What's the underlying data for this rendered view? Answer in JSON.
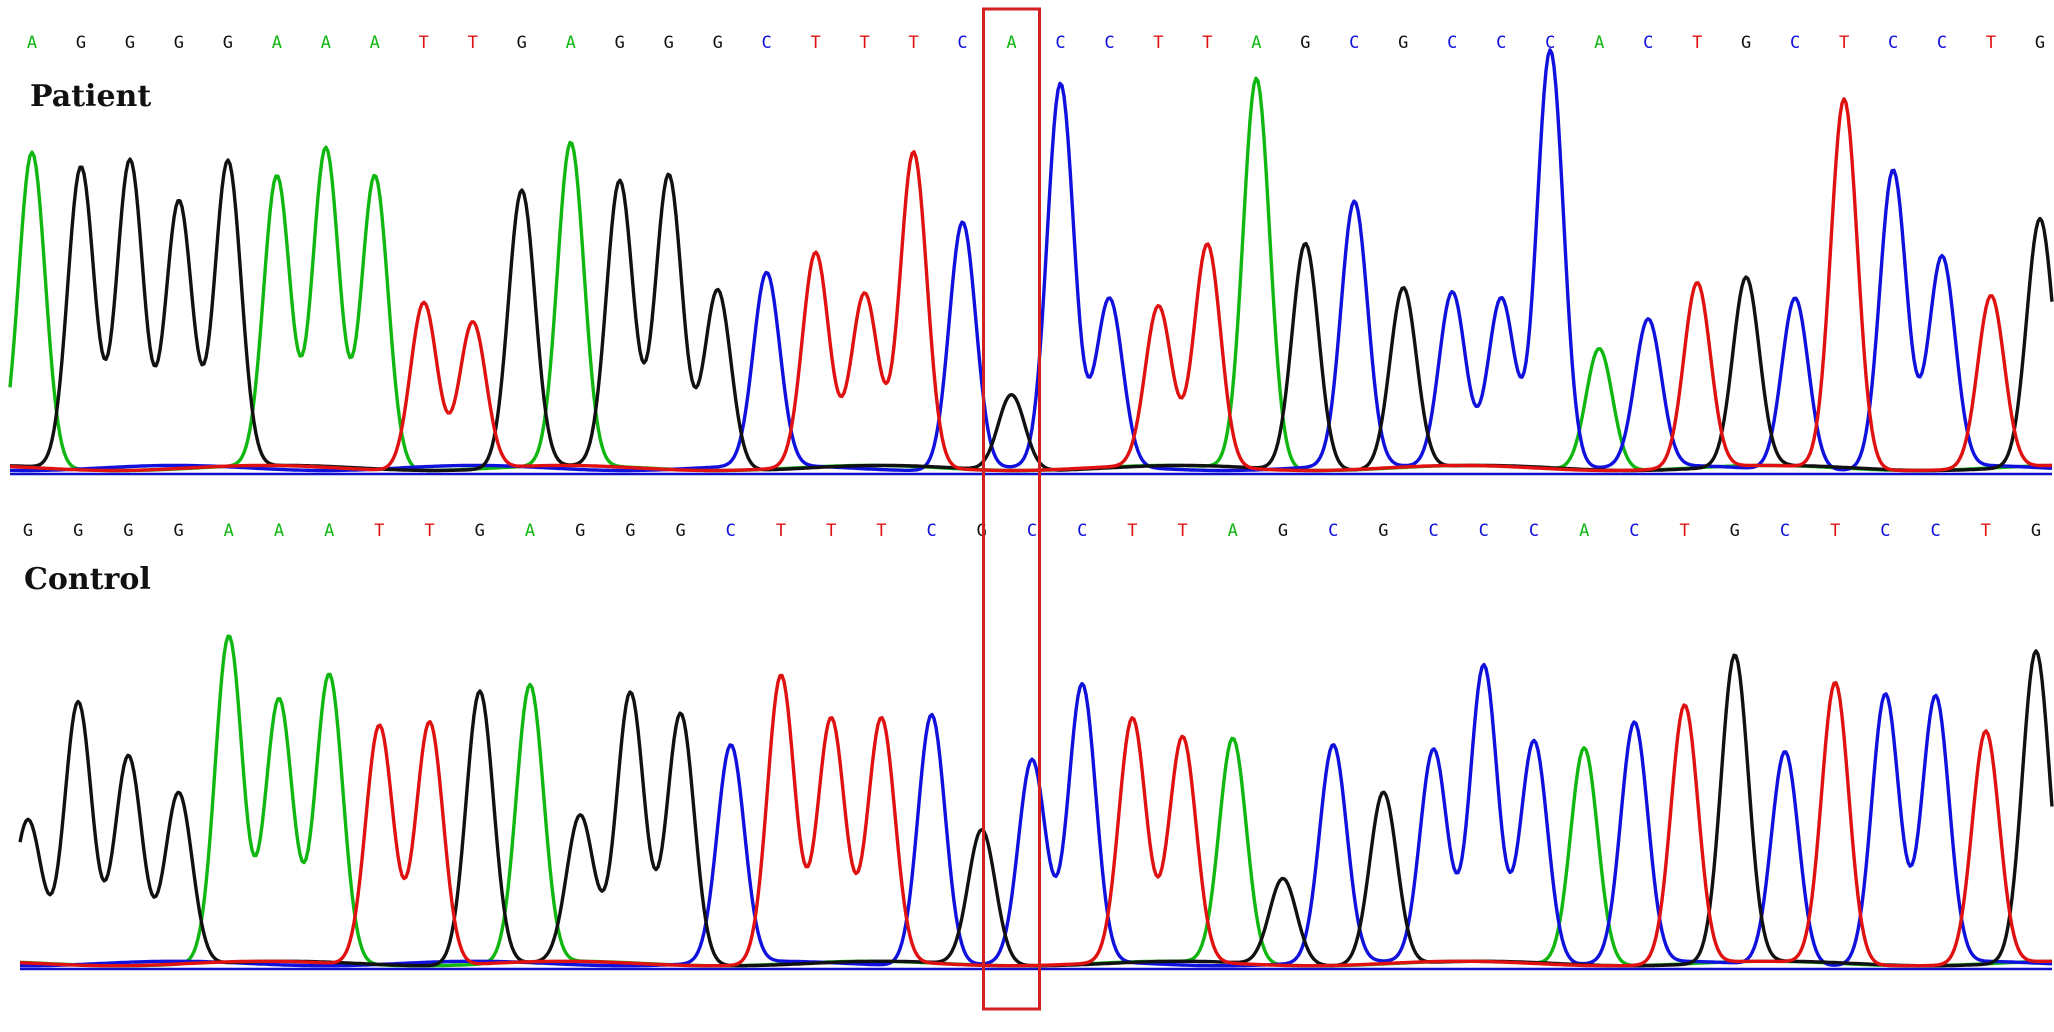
{
  "colors": {
    "A": "#11b711",
    "C": "#1111dd",
    "G": "#111111",
    "T": "#e01111",
    "highlight": "#d42020",
    "baseline": "#1111cc"
  },
  "chart_data": [
    {
      "type": "line",
      "title": "Patient",
      "sequence": [
        "A",
        "G",
        "G",
        "G",
        "G",
        "A",
        "A",
        "A",
        "T",
        "T",
        "G",
        "A",
        "G",
        "G",
        "G",
        "C",
        "T",
        "T",
        "T",
        "C",
        "A",
        "C",
        "C",
        "T",
        "T",
        "A",
        "G",
        "C",
        "G",
        "C",
        "C",
        "C",
        "A",
        "C",
        "T",
        "G",
        "C",
        "T",
        "C",
        "C",
        "T",
        "G"
      ],
      "highlight_index": 20,
      "peaks": [
        {
          "base": "A",
          "h": 0.75
        },
        {
          "base": "G",
          "h": 0.72
        },
        {
          "base": "G",
          "h": 0.74
        },
        {
          "base": "G",
          "h": 0.64
        },
        {
          "base": "G",
          "h": 0.73
        },
        {
          "base": "A",
          "h": 0.69
        },
        {
          "base": "A",
          "h": 0.76
        },
        {
          "base": "A",
          "h": 0.7
        },
        {
          "base": "T",
          "h": 0.4
        },
        {
          "base": "T",
          "h": 0.35
        },
        {
          "base": "G",
          "h": 0.66
        },
        {
          "base": "A",
          "h": 0.77
        },
        {
          "base": "G",
          "h": 0.68
        },
        {
          "base": "G",
          "h": 0.7
        },
        {
          "base": "G",
          "h": 0.43
        },
        {
          "base": "C",
          "h": 0.46
        },
        {
          "base": "T",
          "h": 0.51
        },
        {
          "base": "T",
          "h": 0.41
        },
        {
          "base": "T",
          "h": 0.75
        },
        {
          "base": "C",
          "h": 0.59
        },
        {
          "base": "G",
          "h": 0.18,
          "label": "A"
        },
        {
          "base": "C",
          "h": 0.91
        },
        {
          "base": "C",
          "h": 0.4
        },
        {
          "base": "T",
          "h": 0.38
        },
        {
          "base": "T",
          "h": 0.53
        },
        {
          "base": "A",
          "h": 0.93
        },
        {
          "base": "G",
          "h": 0.54
        },
        {
          "base": "C",
          "h": 0.63
        },
        {
          "base": "G",
          "h": 0.43
        },
        {
          "base": "C",
          "h": 0.42
        },
        {
          "base": "C",
          "h": 0.41
        },
        {
          "base": "C",
          "h": 1.0
        },
        {
          "base": "A",
          "h": 0.29
        },
        {
          "base": "C",
          "h": 0.35
        },
        {
          "base": "T",
          "h": 0.44
        },
        {
          "base": "G",
          "h": 0.45
        },
        {
          "base": "C",
          "h": 0.41
        },
        {
          "base": "T",
          "h": 0.88
        },
        {
          "base": "C",
          "h": 0.71
        },
        {
          "base": "C",
          "h": 0.5
        },
        {
          "base": "T",
          "h": 0.41
        },
        {
          "base": "G",
          "h": 0.59
        }
      ]
    },
    {
      "type": "line",
      "title": "Control",
      "sequence": [
        "G",
        "G",
        "G",
        "G",
        "A",
        "A",
        "A",
        "T",
        "T",
        "G",
        "A",
        "G",
        "G",
        "G",
        "C",
        "T",
        "T",
        "T",
        "C",
        "G",
        "C",
        "C",
        "T",
        "T",
        "A",
        "G",
        "C",
        "G",
        "C",
        "C",
        "C",
        "A",
        "C",
        "T",
        "G",
        "C",
        "T",
        "C",
        "C",
        "T",
        "G"
      ],
      "highlight_index": 19,
      "peaks": [
        {
          "base": "G",
          "h": 0.38
        },
        {
          "base": "G",
          "h": 0.7
        },
        {
          "base": "G",
          "h": 0.56
        },
        {
          "base": "G",
          "h": 0.46
        },
        {
          "base": "A",
          "h": 0.87
        },
        {
          "base": "A",
          "h": 0.7
        },
        {
          "base": "A",
          "h": 0.77
        },
        {
          "base": "T",
          "h": 0.64
        },
        {
          "base": "T",
          "h": 0.65
        },
        {
          "base": "G",
          "h": 0.73
        },
        {
          "base": "A",
          "h": 0.74
        },
        {
          "base": "G",
          "h": 0.39
        },
        {
          "base": "G",
          "h": 0.72
        },
        {
          "base": "G",
          "h": 0.67
        },
        {
          "base": "C",
          "h": 0.58
        },
        {
          "base": "T",
          "h": 0.77
        },
        {
          "base": "T",
          "h": 0.65
        },
        {
          "base": "T",
          "h": 0.65
        },
        {
          "base": "C",
          "h": 0.67
        },
        {
          "base": "G",
          "h": 0.36
        },
        {
          "base": "C",
          "h": 0.54
        },
        {
          "base": "C",
          "h": 0.74
        },
        {
          "base": "T",
          "h": 0.65
        },
        {
          "base": "T",
          "h": 0.6
        },
        {
          "base": "A",
          "h": 0.6
        },
        {
          "base": "G",
          "h": 0.23
        },
        {
          "base": "C",
          "h": 0.58
        },
        {
          "base": "G",
          "h": 0.46
        },
        {
          "base": "C",
          "h": 0.57
        },
        {
          "base": "C",
          "h": 0.8
        },
        {
          "base": "C",
          "h": 0.6
        },
        {
          "base": "A",
          "h": 0.58
        },
        {
          "base": "C",
          "h": 0.64
        },
        {
          "base": "T",
          "h": 0.69
        },
        {
          "base": "G",
          "h": 0.82
        },
        {
          "base": "C",
          "h": 0.57
        },
        {
          "base": "T",
          "h": 0.75
        },
        {
          "base": "C",
          "h": 0.72
        },
        {
          "base": "C",
          "h": 0.71
        },
        {
          "base": "T",
          "h": 0.62
        },
        {
          "base": "G",
          "h": 0.83
        }
      ]
    }
  ]
}
